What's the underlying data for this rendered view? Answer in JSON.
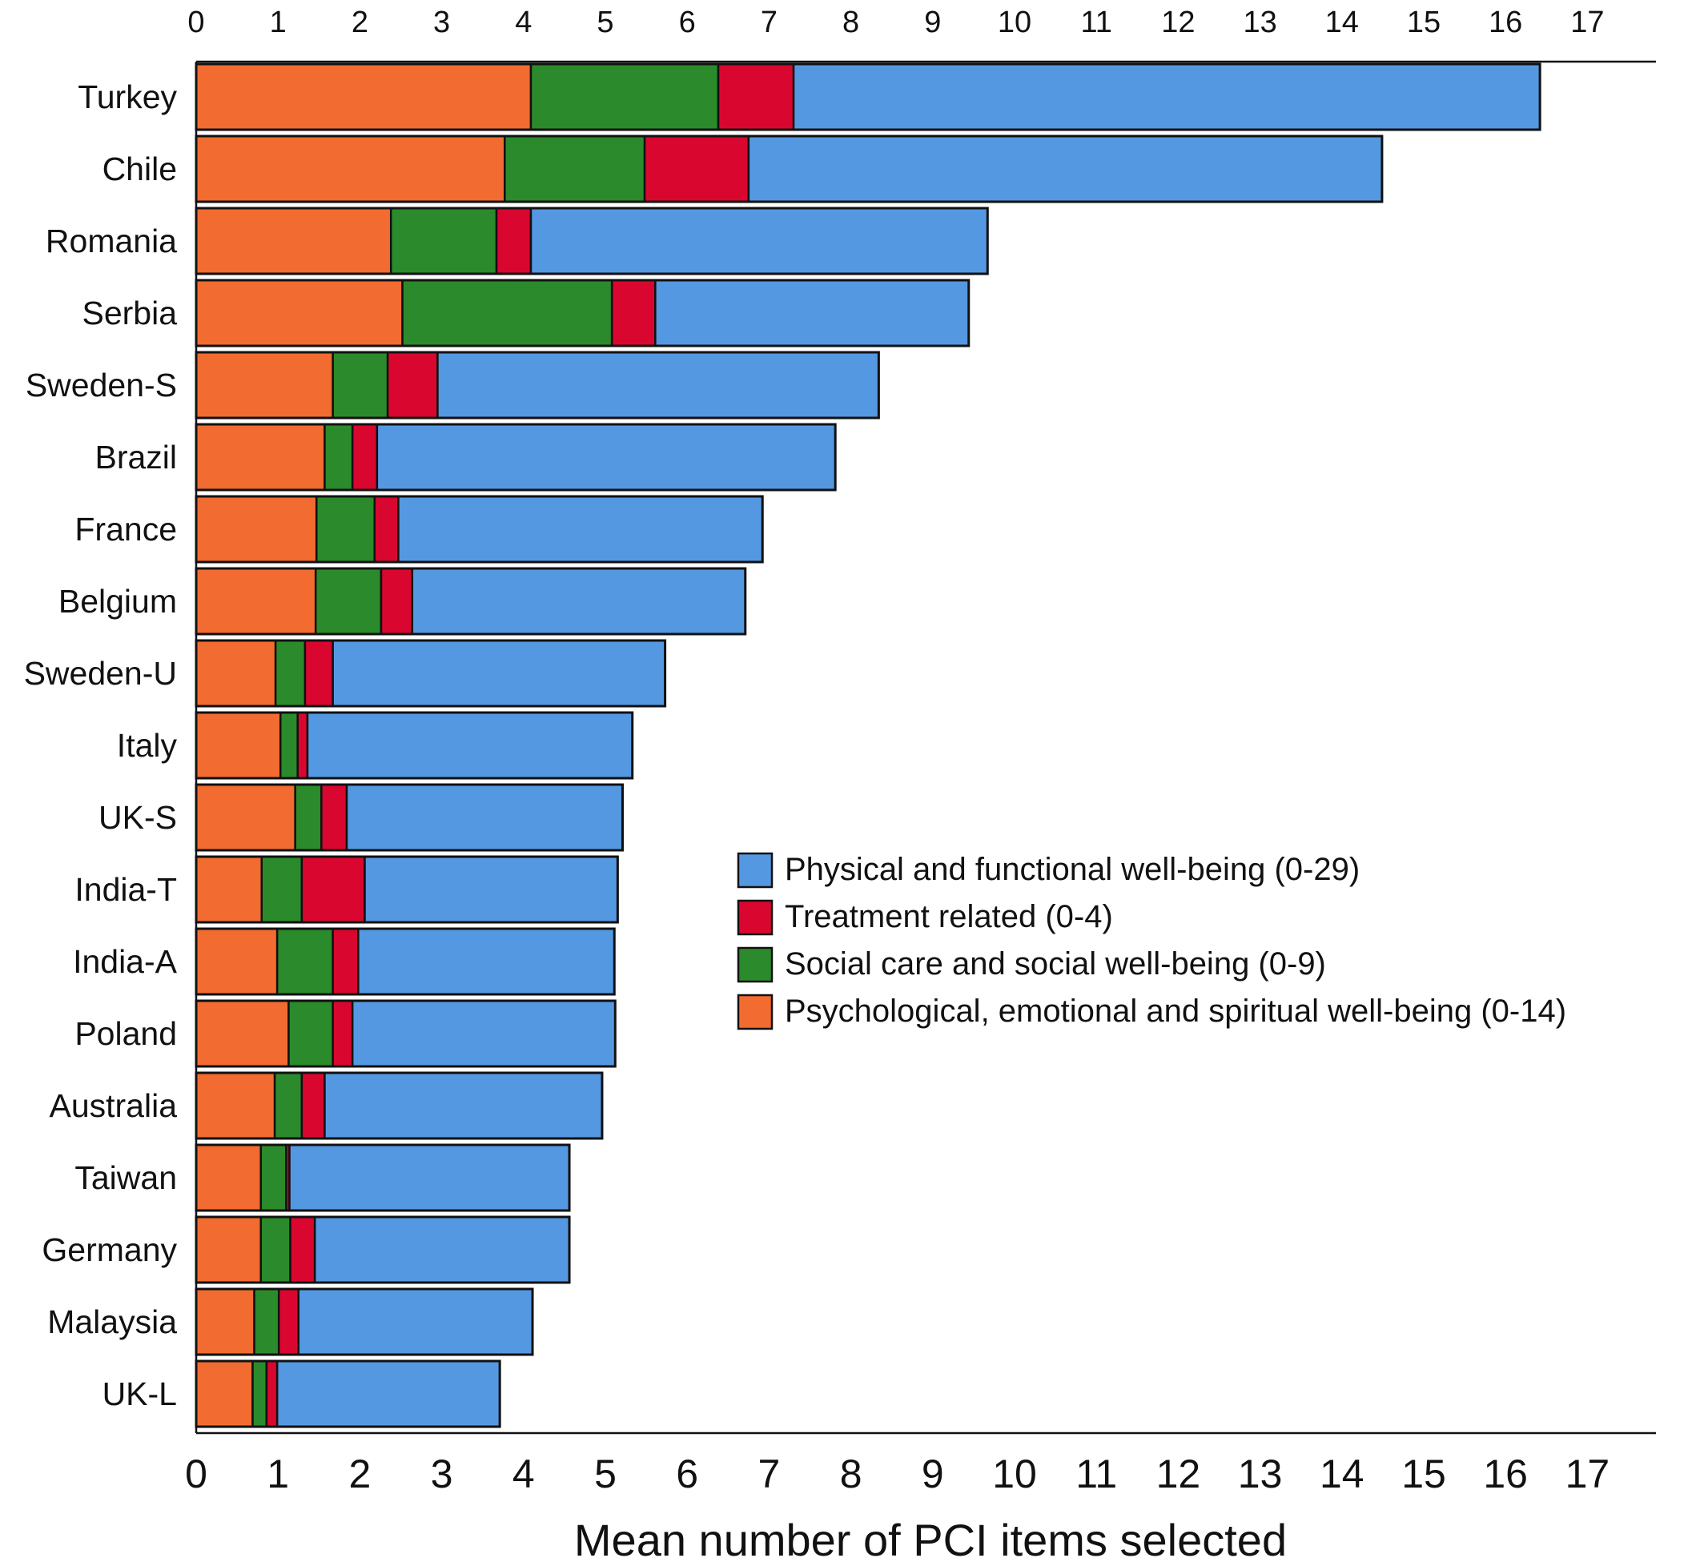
{
  "chart_data": {
    "type": "bar",
    "orientation": "horizontal",
    "stacked": true,
    "xlabel": "Mean number of PCI items selected",
    "xlim": [
      0,
      17
    ],
    "xticks": [
      "0",
      "1",
      "2",
      "3",
      "4",
      "5",
      "6",
      "7",
      "8",
      "9",
      "10",
      "11",
      "12",
      "13",
      "14",
      "15",
      "16",
      "17"
    ],
    "grid": false,
    "legend_position": "right-middle",
    "categories": [
      "Turkey",
      "Chile",
      "Romania",
      "Serbia",
      "Sweden-S",
      "Brazil",
      "France",
      "Belgium",
      "Sweden-U",
      "Italy",
      "UK-S",
      "India-T",
      "India-A",
      "Poland",
      "Australia",
      "Taiwan",
      "Germany",
      "Malaysia",
      "UK-L"
    ],
    "series": [
      {
        "name": "Psychological, emotional and spiritual well-being (0-14)",
        "color": "#f26b30",
        "values": [
          4.09,
          3.77,
          2.38,
          2.52,
          1.67,
          1.57,
          1.47,
          1.46,
          0.97,
          1.03,
          1.21,
          0.8,
          0.99,
          1.13,
          0.96,
          0.79,
          0.79,
          0.71,
          0.69
        ]
      },
      {
        "name": "Social care and social well-being (0-9)",
        "color": "#2b8a2b",
        "values": [
          2.29,
          1.71,
          1.29,
          2.56,
          0.67,
          0.34,
          0.71,
          0.8,
          0.36,
          0.21,
          0.32,
          0.49,
          0.68,
          0.54,
          0.33,
          0.31,
          0.36,
          0.3,
          0.17
        ]
      },
      {
        "name": "Treatment related (0-4)",
        "color": "#d9072f",
        "values": [
          0.92,
          1.27,
          0.42,
          0.53,
          0.61,
          0.3,
          0.29,
          0.38,
          0.34,
          0.12,
          0.31,
          0.77,
          0.31,
          0.24,
          0.28,
          0.04,
          0.3,
          0.24,
          0.13
        ]
      },
      {
        "name": "Physical and functional well-being (0-29)",
        "color": "#5598e2",
        "values": [
          9.12,
          7.74,
          5.58,
          3.83,
          5.39,
          5.6,
          4.45,
          4.07,
          4.06,
          3.97,
          3.37,
          3.09,
          3.13,
          3.21,
          3.39,
          3.42,
          3.11,
          2.86,
          2.72
        ]
      }
    ],
    "legend_order": [
      3,
      2,
      1,
      0
    ]
  }
}
